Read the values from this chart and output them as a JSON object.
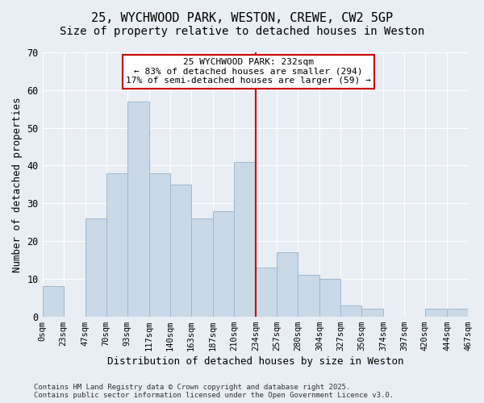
{
  "title_line1": "25, WYCHWOOD PARK, WESTON, CREWE, CW2 5GP",
  "title_line2": "Size of property relative to detached houses in Weston",
  "xlabel": "Distribution of detached houses by size in Weston",
  "ylabel": "Number of detached properties",
  "bar_color": "#c9d9e8",
  "bar_edge_color": "#a0b8cc",
  "background_color": "#e8eef4",
  "bin_edges": [
    0,
    23,
    47,
    70,
    93,
    117,
    140,
    163,
    187,
    210,
    234,
    257,
    280,
    304,
    327,
    350,
    374,
    397,
    420,
    444,
    467
  ],
  "bin_labels": [
    "0sqm",
    "23sqm",
    "47sqm",
    "70sqm",
    "93sqm",
    "117sqm",
    "140sqm",
    "163sqm",
    "187sqm",
    "210sqm",
    "234sqm",
    "257sqm",
    "280sqm",
    "304sqm",
    "327sqm",
    "350sqm",
    "374sqm",
    "397sqm",
    "420sqm",
    "444sqm",
    "467sqm"
  ],
  "counts": [
    8,
    0,
    26,
    38,
    57,
    38,
    35,
    26,
    28,
    41,
    13,
    17,
    11,
    10,
    3,
    2,
    0,
    0,
    2,
    2
  ],
  "vline_x": 234,
  "vline_color": "#cc0000",
  "annotation_title": "25 WYCHWOOD PARK: 232sqm",
  "annotation_line1": "← 83% of detached houses are smaller (294)",
  "annotation_line2": "17% of semi-detached houses are larger (59) →",
  "annotation_box_color": "#cc0000",
  "annotation_fill": "#ffffff",
  "ylim": [
    0,
    70
  ],
  "yticks": [
    0,
    10,
    20,
    30,
    40,
    50,
    60,
    70
  ],
  "footer_line1": "Contains HM Land Registry data © Crown copyright and database right 2025.",
  "footer_line2": "Contains public sector information licensed under the Open Government Licence v3.0.",
  "title_fontsize": 11,
  "subtitle_fontsize": 10,
  "axis_label_fontsize": 9,
  "tick_fontsize": 7.5,
  "annotation_fontsize": 8,
  "footer_fontsize": 6.5
}
